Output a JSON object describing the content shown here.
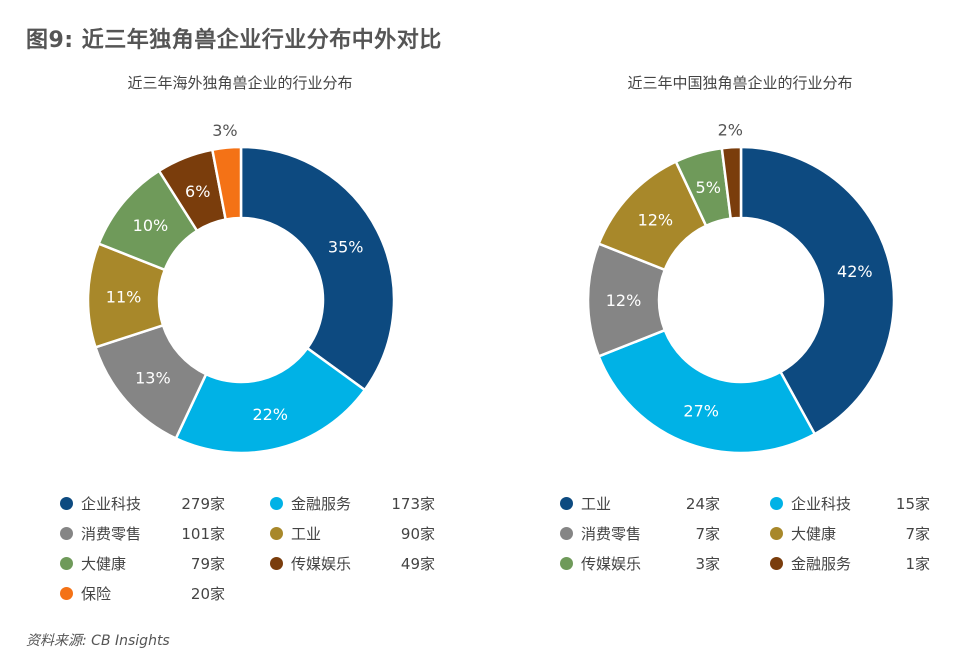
{
  "figure_title": "图9: 近三年独角兽企业行业分布中外对比",
  "source": "资料来源: CB Insights",
  "chart_data": [
    {
      "type": "pie",
      "donut": true,
      "title": "近三年海外独角兽企业的行业分布",
      "slices": [
        {
          "name": "企业科技",
          "value": 35,
          "label": "35%",
          "count": "279家",
          "color": "#0d4a80"
        },
        {
          "name": "金融服务",
          "value": 22,
          "label": "22%",
          "count": "173家",
          "color": "#00b2e6"
        },
        {
          "name": "消费零售",
          "value": 13,
          "label": "13%",
          "count": "101家",
          "color": "#858585"
        },
        {
          "name": "工业",
          "value": 11,
          "label": "11%",
          "count": "90家",
          "color": "#a8882a"
        },
        {
          "name": "大健康",
          "value": 10,
          "label": "10%",
          "count": "79家",
          "color": "#6f9a5a"
        },
        {
          "name": "传媒娱乐",
          "value": 6,
          "label": "6%",
          "count": "49家",
          "color": "#7a3d0c"
        },
        {
          "name": "保险",
          "value": 3,
          "label": "3%",
          "count": "20家",
          "color": "#f47216"
        }
      ]
    },
    {
      "type": "pie",
      "donut": true,
      "title": "近三年中国独角兽企业的行业分布",
      "slices": [
        {
          "name": "工业",
          "value": 42,
          "label": "42%",
          "count": "24家",
          "color": "#0d4a80"
        },
        {
          "name": "企业科技",
          "value": 27,
          "label": "27%",
          "count": "15家",
          "color": "#00b2e6"
        },
        {
          "name": "消费零售",
          "value": 12,
          "label": "12%",
          "count": "7家",
          "color": "#858585"
        },
        {
          "name": "大健康",
          "value": 12,
          "label": "12%",
          "count": "7家",
          "color": "#a8882a"
        },
        {
          "name": "传媒娱乐",
          "value": 5,
          "label": "5%",
          "count": "3家",
          "color": "#6f9a5a"
        },
        {
          "name": "金融服务",
          "value": 2,
          "label": "2%",
          "count": "1家",
          "color": "#7a3d0c"
        }
      ]
    }
  ]
}
